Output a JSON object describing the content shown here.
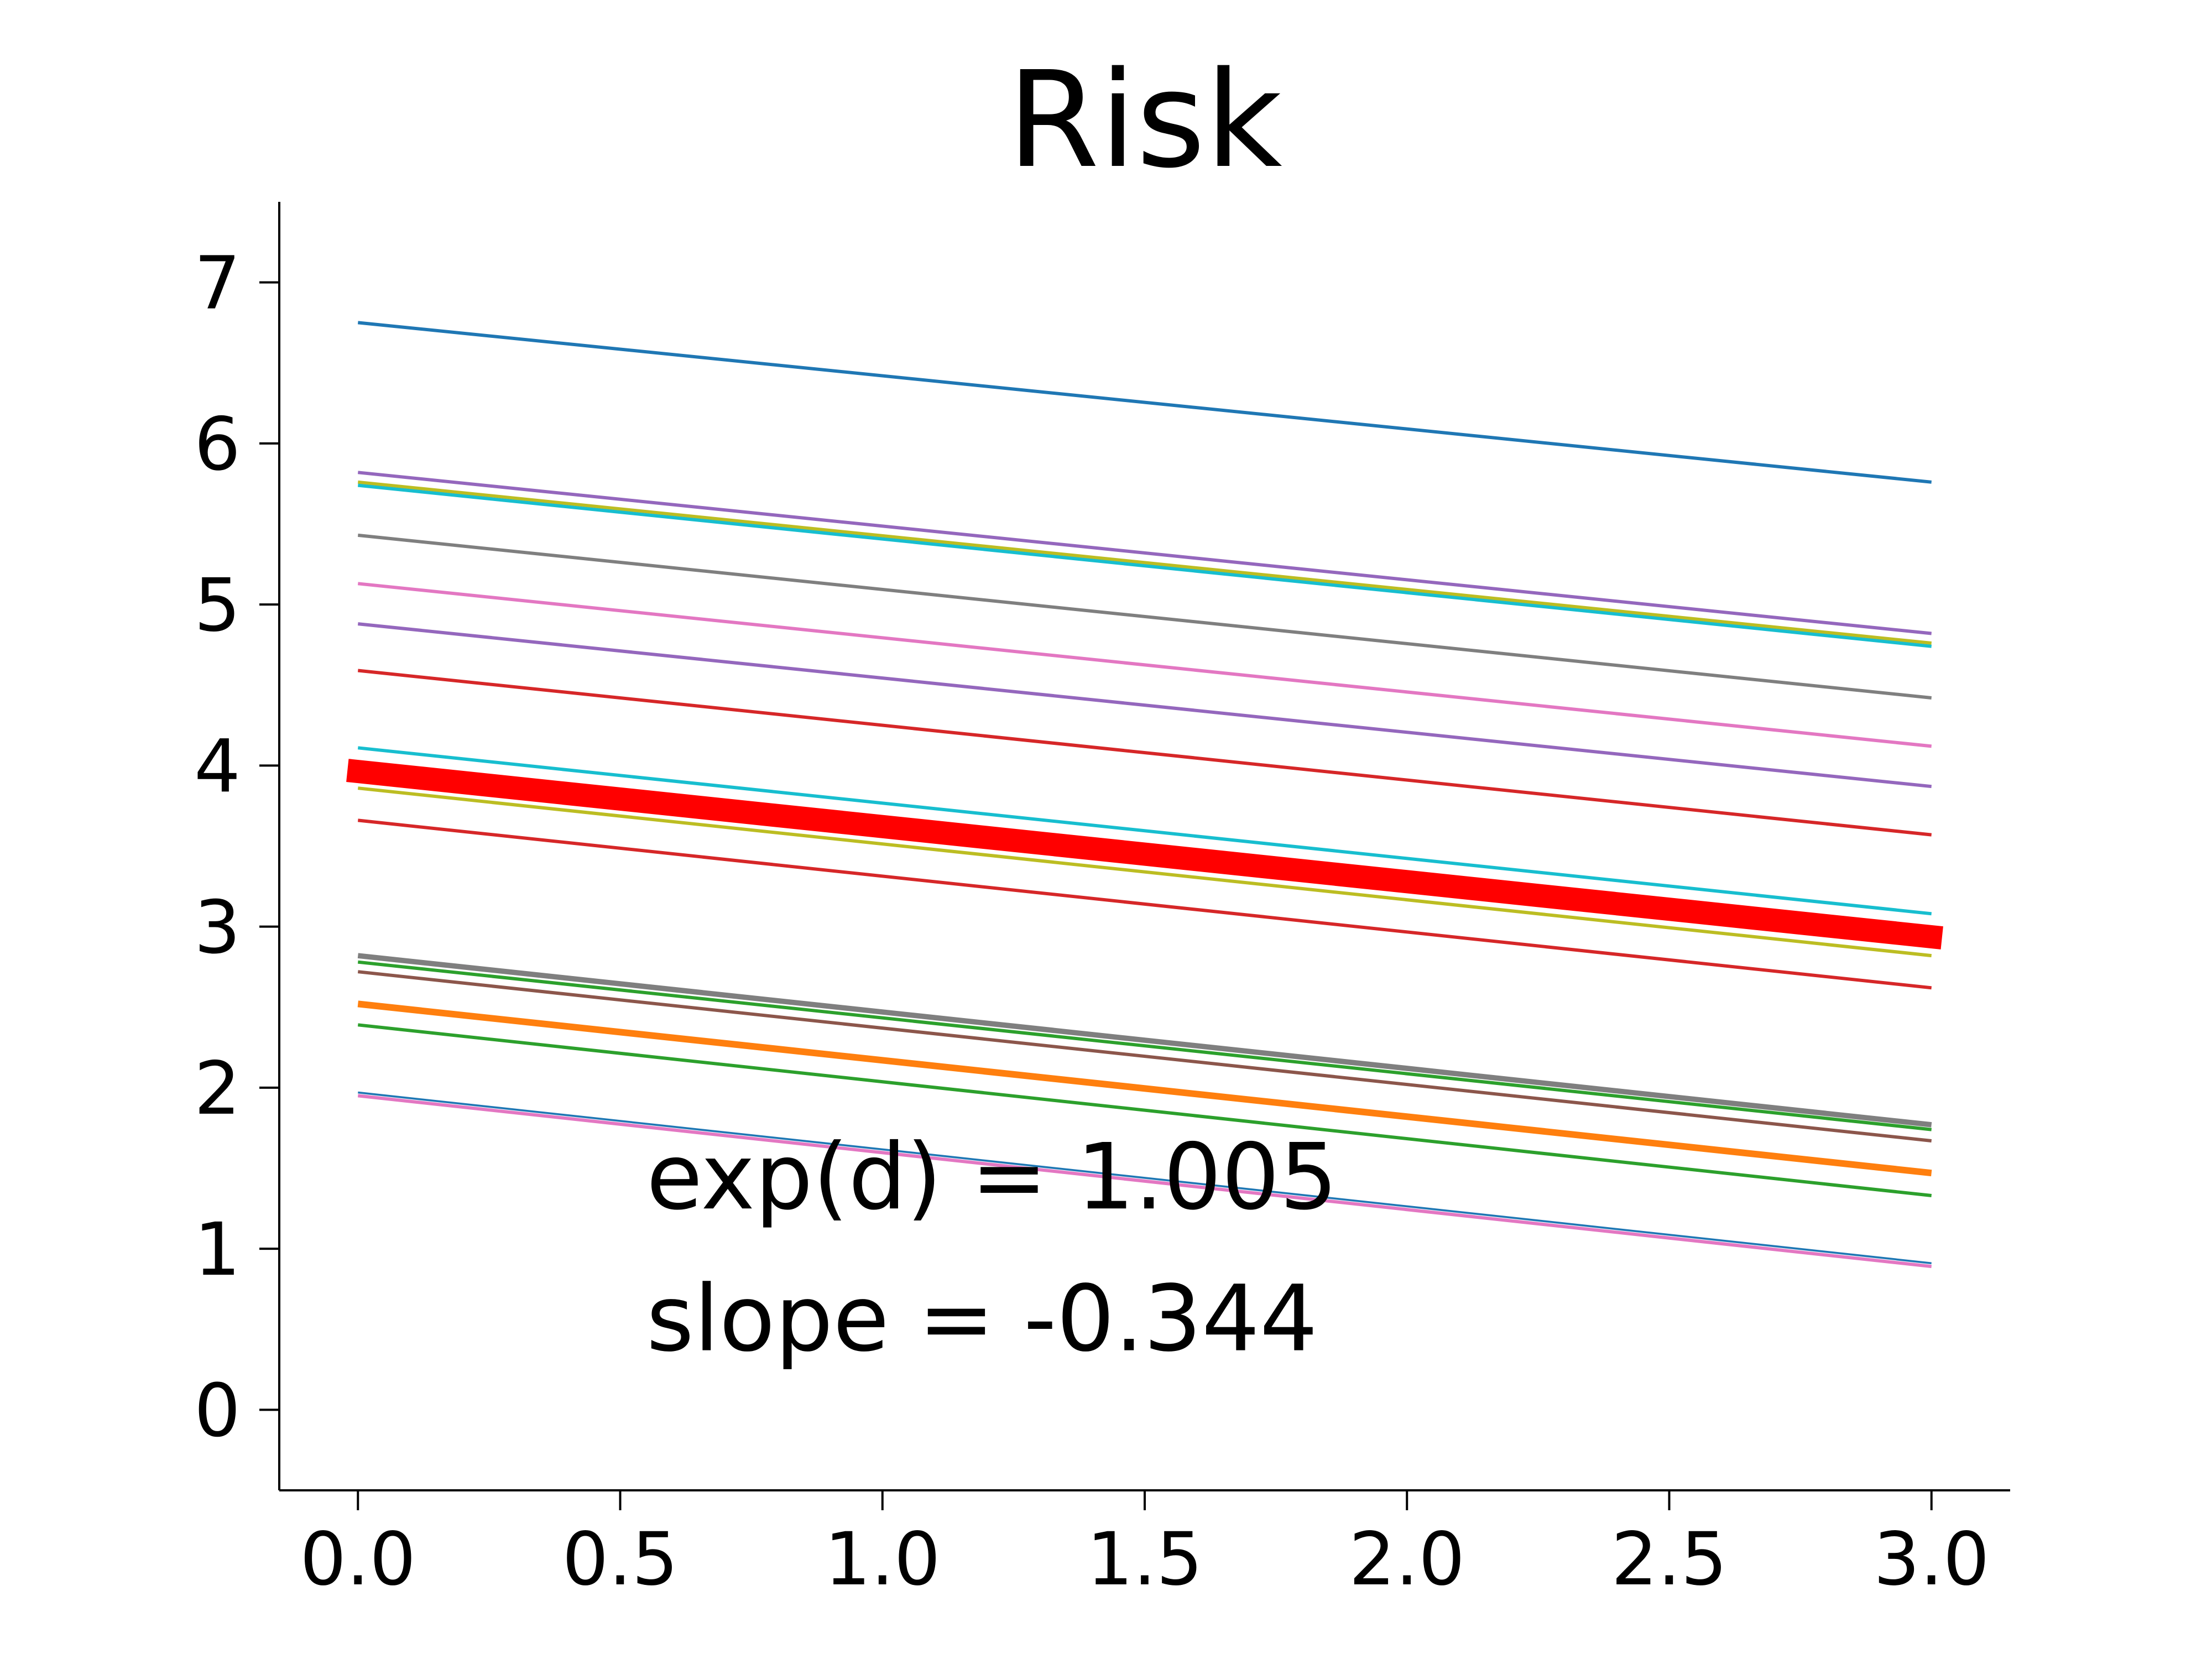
{
  "chart_data": {
    "type": "line",
    "title": "Risk",
    "xlabel": "",
    "ylabel": "",
    "xlim": [
      -0.15,
      3.15
    ],
    "ylim": [
      -0.5,
      7.5
    ],
    "xticks": [
      0.0,
      0.5,
      1.0,
      1.5,
      2.0,
      2.5,
      3.0
    ],
    "xtick_labels": [
      "0.0",
      "0.5",
      "1.0",
      "1.5",
      "2.0",
      "2.5",
      "3.0"
    ],
    "yticks": [
      0,
      1,
      2,
      3,
      4,
      5,
      6,
      7
    ],
    "ytick_labels": [
      "0",
      "1",
      "2",
      "3",
      "4",
      "5",
      "6",
      "7"
    ],
    "grid": false,
    "legend": "none",
    "annotations": [
      {
        "text": "exp(d) = 1.005",
        "x": 0.55,
        "y": 1.25
      },
      {
        "text": "slope = -0.344",
        "x": 0.55,
        "y": 0.37
      }
    ],
    "series": [
      {
        "color": "#1f77b4",
        "width": 1,
        "x": [
          0,
          3
        ],
        "y": [
          6.75,
          5.76
        ]
      },
      {
        "color": "#9467bd",
        "width": 1,
        "x": [
          0,
          3
        ],
        "y": [
          5.82,
          4.82
        ]
      },
      {
        "color": "#bcbd22",
        "width": 1,
        "x": [
          0,
          3
        ],
        "y": [
          5.76,
          4.76
        ]
      },
      {
        "color": "#17becf",
        "width": 1,
        "x": [
          0,
          3
        ],
        "y": [
          5.74,
          4.74
        ]
      },
      {
        "color": "#7f7f7f",
        "width": 1,
        "x": [
          0,
          3
        ],
        "y": [
          5.43,
          4.42
        ]
      },
      {
        "color": "#e377c2",
        "width": 1,
        "x": [
          0,
          3
        ],
        "y": [
          5.13,
          4.12
        ]
      },
      {
        "color": "#9467bd",
        "width": 1,
        "x": [
          0,
          3
        ],
        "y": [
          4.88,
          3.87
        ]
      },
      {
        "color": "#d62728",
        "width": 1,
        "x": [
          0,
          3
        ],
        "y": [
          4.59,
          3.57
        ]
      },
      {
        "color": "#17becf",
        "width": 1,
        "x": [
          0,
          3
        ],
        "y": [
          4.11,
          3.08
        ]
      },
      {
        "color": "#bcbd22",
        "width": 1,
        "x": [
          0,
          3
        ],
        "y": [
          3.86,
          2.82
        ]
      },
      {
        "color": "#d62728",
        "width": 1,
        "x": [
          0,
          3
        ],
        "y": [
          3.66,
          2.62
        ]
      },
      {
        "color": "#7f7f7f",
        "width": 1.6,
        "x": [
          0,
          3
        ],
        "y": [
          2.82,
          1.77
        ]
      },
      {
        "color": "#2ca02c",
        "width": 1,
        "x": [
          0,
          3
        ],
        "y": [
          2.78,
          1.74
        ]
      },
      {
        "color": "#8c564b",
        "width": 1,
        "x": [
          0,
          3
        ],
        "y": [
          2.72,
          1.67
        ]
      },
      {
        "color": "#ff7f0e",
        "width": 2,
        "x": [
          0,
          3
        ],
        "y": [
          2.52,
          1.47
        ]
      },
      {
        "color": "#2ca02c",
        "width": 1,
        "x": [
          0,
          3
        ],
        "y": [
          2.39,
          1.33
        ]
      },
      {
        "color": "#1f77b4",
        "width": 0.6,
        "x": [
          0,
          3
        ],
        "y": [
          1.97,
          0.91
        ]
      },
      {
        "color": "#e377c2",
        "width": 1,
        "x": [
          0,
          3
        ],
        "y": [
          1.95,
          0.89
        ]
      },
      {
        "color": "#ff0000",
        "width": 7,
        "x": [
          -0.02,
          3.02
        ],
        "y": [
          3.97,
          2.93
        ]
      }
    ]
  }
}
